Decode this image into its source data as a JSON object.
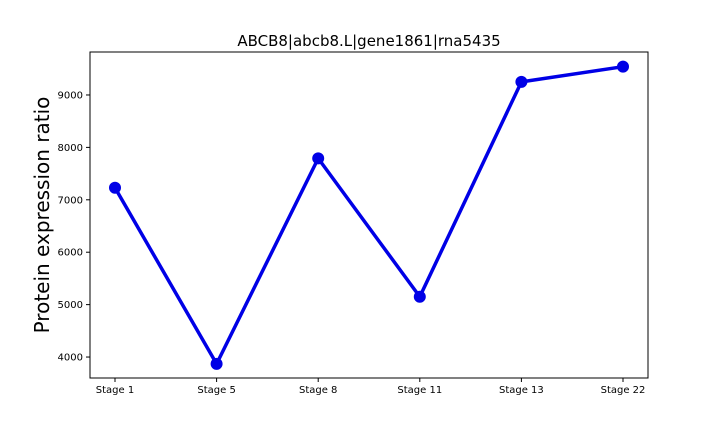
{
  "chart_data": {
    "type": "line",
    "title": "ABCB8|abcb8.L|gene1861|rna5435",
    "xlabel": "",
    "ylabel": "Protein expression ratio",
    "categories": [
      "Stage 1",
      "Stage 5",
      "Stage 8",
      "Stage 11",
      "Stage 13",
      "Stage 22"
    ],
    "series": [
      {
        "values": [
          7230,
          3870,
          7790,
          5150,
          9250,
          9540
        ]
      }
    ],
    "ylim": [
      3600,
      9820
    ],
    "yticks": [
      4000,
      5000,
      6000,
      7000,
      8000,
      9000
    ],
    "grid": false,
    "legend": "none",
    "colors": {
      "line": "#0000e6",
      "marker": "#0000e6",
      "axes": "#000000"
    }
  }
}
